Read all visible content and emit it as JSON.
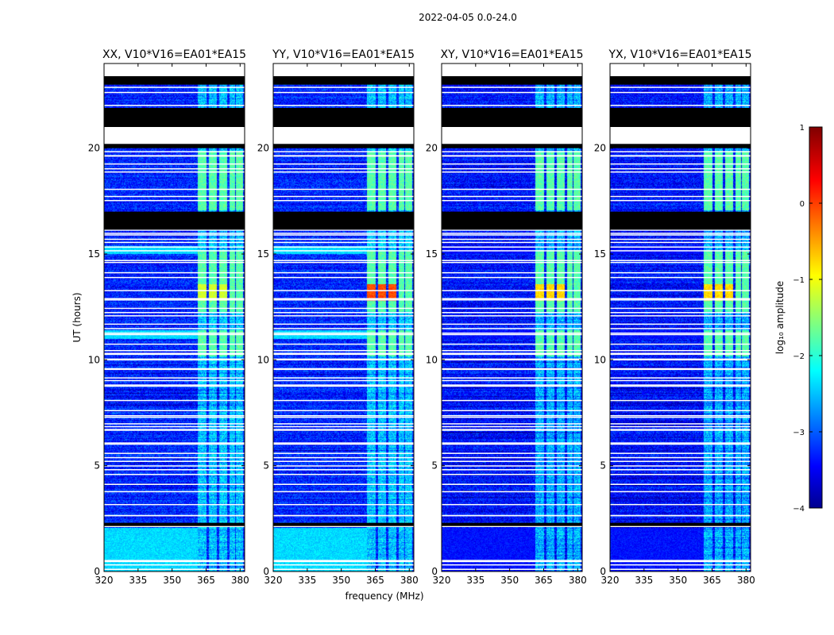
{
  "suptitle": "2022-04-05 0.0-24.0",
  "chart_data": {
    "type": "heatmap",
    "xlabel": "frequency (MHz)",
    "ylabel": "UT (hours)",
    "xlim": [
      320,
      382
    ],
    "ylim": [
      0,
      24
    ],
    "xticks": [
      320,
      335,
      350,
      365,
      380
    ],
    "yticks": [
      0,
      5,
      10,
      15,
      20
    ],
    "colorbar": {
      "label": "log₁₀ amplitude",
      "colormap": "jet",
      "range": [
        -4,
        1
      ],
      "ticks": [
        -4,
        -3,
        -2,
        -1,
        0,
        1
      ],
      "tick_labels": [
        "−4",
        "−3",
        "−2",
        "−1",
        "0",
        "1"
      ]
    },
    "panels": [
      {
        "title": "XX, V10*V16=EA01*EA15",
        "background_level": -3.2,
        "bright_peak": -1.1,
        "flagged_band_level": -2.3
      },
      {
        "title": "YY, V10*V16=EA01*EA15",
        "background_level": -3.2,
        "bright_peak": 0.0,
        "flagged_band_level": -2.3
      },
      {
        "title": "XY, V10*V16=EA01*EA15",
        "background_level": -3.3,
        "bright_peak": -0.7,
        "flagged_band_level": -3.3
      },
      {
        "title": "YX, V10*V16=EA01*EA15",
        "background_level": -3.3,
        "bright_peak": -0.7,
        "flagged_band_level": -3.3
      }
    ],
    "no_data_hours": [
      [
        2.15,
        2.3
      ],
      [
        21.0,
        21.9
      ],
      [
        20.0,
        20.2
      ],
      [
        16.15,
        17.0
      ],
      [
        23.0,
        23.4
      ]
    ],
    "gap_hours": [
      [
        2.1,
        2.2
      ],
      [
        20.2,
        21.1
      ],
      [
        23.4,
        24.0
      ]
    ],
    "rfi_bands_mhz": [
      [
        361,
        365
      ],
      [
        366,
        369.5
      ],
      [
        370.5,
        374
      ],
      [
        375,
        377.5
      ],
      [
        378,
        381
      ]
    ],
    "strong_rfi_hours": [
      [
        12.3,
        15.2
      ],
      [
        10.2,
        11.4
      ],
      [
        17.1,
        19.9
      ]
    ],
    "colors": {
      "background": "#ffffff",
      "axes": "#000000",
      "no_data": "#000000"
    }
  }
}
